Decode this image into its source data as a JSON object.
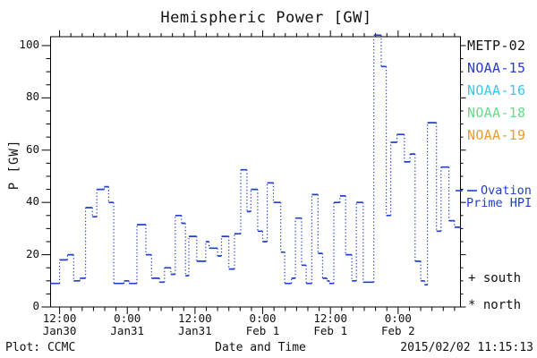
{
  "title": "Hemispheric Power [GW]",
  "colors": {
    "frame": "#000000",
    "model_blue": "#2140cc",
    "metp02_black": "#111111",
    "noaa15_blue": "#2a3dc8",
    "noaa16_cyan": "#3cc6f0",
    "noaa18_green": "#63de8b",
    "noaa19_orange": "#f09c28"
  },
  "legend": {
    "satellites": [
      {
        "label": "METP-02",
        "color": "#111111"
      },
      {
        "label": "NOAA-15",
        "color": "#2a3dc8"
      },
      {
        "label": "NOAA-16",
        "color": "#3cc6f0"
      },
      {
        "label": "NOAA-18",
        "color": "#63de8b"
      },
      {
        "label": "NOAA-19",
        "color": "#f09c28"
      }
    ],
    "model_label_line1": "Ovation",
    "model_label_line2": "Prime HPI",
    "south_label": "+ south",
    "north_label": "* north"
  },
  "footer": {
    "credit": "Plot: CCMC",
    "xlabel": "Date and Time",
    "timestamp": "2015/02/02 11:15:13"
  },
  "chart_data": {
    "type": "line",
    "subtype": "step-post",
    "line_style": "solid levels, dotted vertical transitions",
    "title": "Hemispheric Power [GW]",
    "xlabel": "Date and Time",
    "ylabel": "P [GW]",
    "ylim": [
      0,
      103.4
    ],
    "yticks": [
      0,
      20,
      40,
      60,
      80,
      100
    ],
    "y_minor_step": 5,
    "x_unit": "hours after Jan30 12:00",
    "x_hours_range": [
      -1.6,
      71.05
    ],
    "x_end_hour": 71.05,
    "x_minor_step_hours": 2,
    "grid": "off",
    "legend_position": "right-outside",
    "x_major_ticks": [
      {
        "hour": 0,
        "time": "12:00",
        "date": "Jan30"
      },
      {
        "hour": 12,
        "time": "0:00",
        "date": "Jan31"
      },
      {
        "hour": 24,
        "time": "12:00",
        "date": "Jan31"
      },
      {
        "hour": 36,
        "time": "0:00",
        "date": "Feb 1"
      },
      {
        "hour": 48,
        "time": "12:00",
        "date": "Feb 1"
      },
      {
        "hour": 60,
        "time": "0:00",
        "date": "Feb 2"
      }
    ],
    "series": [
      {
        "name": "Ovation Prime HPI",
        "color": "#2140cc",
        "steps_hour_value": [
          [
            -1.6,
            9
          ],
          [
            0,
            18
          ],
          [
            1.4,
            20
          ],
          [
            2.5,
            10
          ],
          [
            3.6,
            11
          ],
          [
            4.6,
            38
          ],
          [
            5.8,
            34.5
          ],
          [
            6.6,
            45
          ],
          [
            7.9,
            46
          ],
          [
            8.7,
            40
          ],
          [
            9.6,
            9
          ],
          [
            11.4,
            10
          ],
          [
            12.3,
            9
          ],
          [
            13.7,
            31.5
          ],
          [
            15.3,
            20
          ],
          [
            16.3,
            11
          ],
          [
            17.7,
            9.5
          ],
          [
            18.6,
            15
          ],
          [
            19.7,
            12.5
          ],
          [
            20.5,
            35
          ],
          [
            21.6,
            32
          ],
          [
            22.3,
            12
          ],
          [
            22.9,
            27
          ],
          [
            24.3,
            17.5
          ],
          [
            25.9,
            25
          ],
          [
            26.5,
            22.5
          ],
          [
            28,
            19.5
          ],
          [
            28.7,
            27
          ],
          [
            30,
            14.5
          ],
          [
            31,
            28
          ],
          [
            32.1,
            52.5
          ],
          [
            33.2,
            36.5
          ],
          [
            33.9,
            45
          ],
          [
            35.1,
            29
          ],
          [
            36,
            25
          ],
          [
            36.8,
            47.5
          ],
          [
            37.9,
            40
          ],
          [
            39.2,
            21
          ],
          [
            39.9,
            9
          ],
          [
            41.1,
            11
          ],
          [
            41.8,
            34
          ],
          [
            42.9,
            16
          ],
          [
            43.7,
            9
          ],
          [
            44.7,
            43
          ],
          [
            45.8,
            20.5
          ],
          [
            46.6,
            11
          ],
          [
            47.4,
            10
          ],
          [
            47.8,
            9
          ],
          [
            48.6,
            40
          ],
          [
            49.7,
            42.5
          ],
          [
            50.7,
            20
          ],
          [
            51.8,
            10
          ],
          [
            52.6,
            40
          ],
          [
            53.8,
            9.5
          ],
          [
            55.7,
            104
          ],
          [
            57,
            92
          ],
          [
            57.9,
            35
          ],
          [
            58.7,
            63
          ],
          [
            59.8,
            66
          ],
          [
            61.1,
            55.5
          ],
          [
            62.1,
            58.5
          ],
          [
            63,
            17.5
          ],
          [
            64,
            10
          ],
          [
            64.7,
            8.5
          ],
          [
            65.2,
            70.5
          ],
          [
            66.8,
            29
          ],
          [
            67.6,
            53.5
          ],
          [
            69,
            33
          ],
          [
            70,
            30.5
          ]
        ]
      }
    ]
  }
}
